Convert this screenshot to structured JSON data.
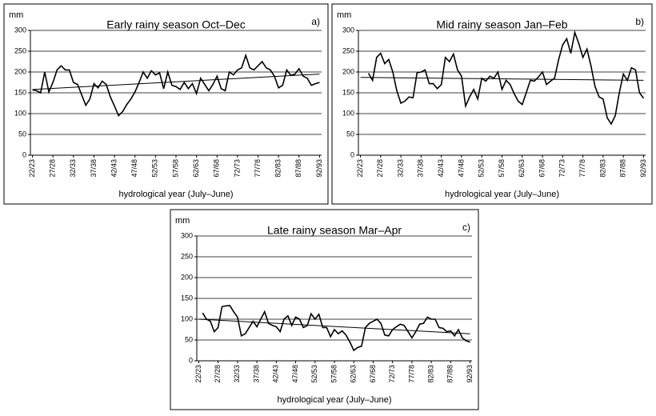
{
  "chart_data": [
    {
      "type": "line",
      "title": "Early rainy season Oct–Dec",
      "panel_label": "a)",
      "y_unit": "mm",
      "x_label": "hydrological year (July–June)",
      "categories": [
        "22/23",
        null,
        null,
        null,
        null,
        "27/28",
        null,
        null,
        null,
        null,
        "32/33",
        null,
        null,
        null,
        null,
        "37/38",
        null,
        null,
        null,
        null,
        "42/43",
        null,
        null,
        null,
        null,
        "47/48",
        null,
        null,
        null,
        null,
        "52/53",
        null,
        null,
        null,
        null,
        "57/58",
        null,
        null,
        null,
        null,
        "62/63",
        null,
        null,
        null,
        null,
        "67/68",
        null,
        null,
        null,
        null,
        "72/73",
        null,
        null,
        null,
        null,
        "77/78",
        null,
        null,
        null,
        null,
        "82/83",
        null,
        null,
        null,
        null,
        "87/88",
        null,
        null,
        null,
        null,
        "92/93"
      ],
      "values": [
        157,
        155,
        150,
        200,
        152,
        175,
        205,
        215,
        205,
        205,
        175,
        170,
        145,
        120,
        135,
        172,
        162,
        178,
        170,
        140,
        118,
        95,
        105,
        122,
        135,
        152,
        175,
        200,
        185,
        203,
        193,
        198,
        160,
        200,
        168,
        165,
        158,
        175,
        160,
        172,
        148,
        185,
        170,
        155,
        170,
        190,
        160,
        155,
        200,
        193,
        205,
        210,
        240,
        210,
        205,
        215,
        225,
        210,
        205,
        190,
        162,
        168,
        205,
        192,
        195,
        208,
        190,
        185,
        168,
        172,
        175
      ],
      "trend_values": [
        158,
        195
      ],
      "color": "#000000",
      "ylim": [
        0,
        300
      ],
      "yticks": [
        0,
        50,
        100,
        150,
        200,
        250,
        300
      ],
      "grid": true
    },
    {
      "type": "line",
      "title": "Mid rainy season Jan–Feb",
      "panel_label": "b)",
      "y_unit": "mm",
      "x_label": "hydrological year (July–June)",
      "categories": [
        "22/23",
        null,
        null,
        null,
        null,
        "27/28",
        null,
        null,
        null,
        null,
        "32/33",
        null,
        null,
        null,
        null,
        "37/38",
        null,
        null,
        null,
        null,
        "42/43",
        null,
        null,
        null,
        null,
        "47/48",
        null,
        null,
        null,
        null,
        "52/53",
        null,
        null,
        null,
        null,
        "57/58",
        null,
        null,
        null,
        null,
        "62/63",
        null,
        null,
        null,
        null,
        "67/68",
        null,
        null,
        null,
        null,
        "72/73",
        null,
        null,
        null,
        null,
        "77/78",
        null,
        null,
        null,
        null,
        "82/83",
        null,
        null,
        null,
        null,
        "87/88",
        null,
        null,
        null,
        null,
        "92/93"
      ],
      "values": [
        null,
        null,
        197,
        180,
        235,
        245,
        220,
        230,
        200,
        155,
        125,
        130,
        140,
        138,
        198,
        200,
        205,
        172,
        172,
        160,
        170,
        235,
        225,
        243,
        205,
        190,
        118,
        140,
        158,
        135,
        185,
        178,
        190,
        185,
        200,
        158,
        180,
        170,
        148,
        130,
        122,
        150,
        180,
        178,
        188,
        200,
        170,
        178,
        185,
        230,
        265,
        280,
        245,
        295,
        268,
        235,
        255,
        215,
        165,
        140,
        135,
        90,
        75,
        95,
        150,
        195,
        180,
        210,
        205,
        150,
        137
      ],
      "trend_values": [
        187,
        180
      ],
      "color": "#000000",
      "ylim": [
        0,
        300
      ],
      "yticks": [
        0,
        50,
        100,
        150,
        200,
        250,
        300
      ],
      "grid": true
    },
    {
      "type": "line",
      "title": "Late rainy season Mar–Apr",
      "panel_label": "c)",
      "y_unit": "mm",
      "x_label": "hydrological year (July–June)",
      "categories": [
        "22/23",
        null,
        null,
        null,
        null,
        "27/28",
        null,
        null,
        null,
        null,
        "32/33",
        null,
        null,
        null,
        null,
        "37/38",
        null,
        null,
        null,
        null,
        "42/43",
        null,
        null,
        null,
        null,
        "47/48",
        null,
        null,
        null,
        null,
        "52/53",
        null,
        null,
        null,
        null,
        "57/58",
        null,
        null,
        null,
        null,
        "62/63",
        null,
        null,
        null,
        null,
        "67/68",
        null,
        null,
        null,
        null,
        "72/73",
        null,
        null,
        null,
        null,
        "77/78",
        null,
        null,
        null,
        null,
        "82/83",
        null,
        null,
        null,
        null,
        "87/88",
        null,
        null,
        null,
        null,
        "92/93"
      ],
      "values": [
        null,
        115,
        100,
        95,
        70,
        80,
        130,
        132,
        133,
        118,
        105,
        60,
        65,
        80,
        95,
        82,
        100,
        118,
        90,
        85,
        82,
        70,
        100,
        108,
        85,
        105,
        100,
        80,
        85,
        113,
        100,
        112,
        80,
        80,
        58,
        75,
        65,
        72,
        62,
        45,
        25,
        32,
        35,
        80,
        90,
        95,
        100,
        90,
        62,
        60,
        75,
        82,
        88,
        85,
        70,
        55,
        70,
        88,
        90,
        105,
        100,
        100,
        80,
        78,
        70,
        72,
        60,
        75,
        55,
        48,
        45
      ],
      "trend_values": [
        100,
        65
      ],
      "color": "#000000",
      "ylim": [
        0,
        300
      ],
      "yticks": [
        0,
        50,
        100,
        150,
        200,
        250,
        300
      ],
      "grid": true
    }
  ]
}
